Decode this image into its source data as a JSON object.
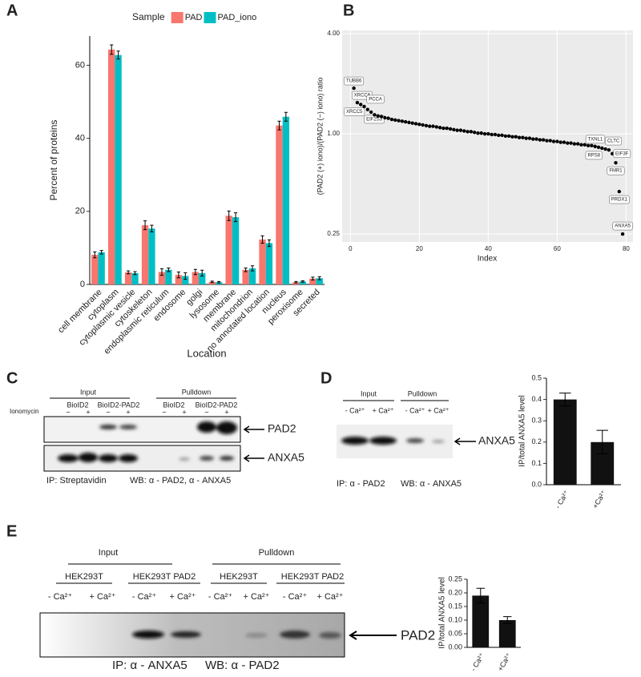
{
  "panel_labels": [
    "A",
    "B",
    "C",
    "D",
    "E"
  ],
  "chart_data": [
    {
      "type": "bar",
      "legend_title": "Sample",
      "xlabel": "Location",
      "ylabel": "Percent of proteins",
      "categories": [
        "cell membrane",
        "cytoplasm",
        "cytoplasmic vesicle",
        "cytoskeleton",
        "endoplasmic reticulum",
        "endosome",
        "golgi",
        "lysosome",
        "membrane",
        "mitochondrion",
        "no annotated location",
        "nucleus",
        "peroxisome",
        "secreted"
      ],
      "series": [
        {
          "name": "PAD",
          "color": "#F8766D",
          "values": [
            8.1,
            64.3,
            3.3,
            16.2,
            3.4,
            2.6,
            3.4,
            0.7,
            18.8,
            4.0,
            12.3,
            43.5,
            0.6,
            1.6
          ],
          "errors": [
            0.8,
            1.3,
            0.4,
            1.2,
            0.9,
            0.8,
            0.7,
            0.2,
            1.3,
            0.5,
            1.0,
            1.2,
            0.2,
            0.4
          ]
        },
        {
          "name": "PAD_iono",
          "color": "#00BFC4",
          "values": [
            8.8,
            62.8,
            3.1,
            15.3,
            4.0,
            2.3,
            3.1,
            0.6,
            18.4,
            4.4,
            11.3,
            45.9,
            0.8,
            1.7
          ],
          "errors": [
            0.5,
            1.1,
            0.4,
            0.9,
            0.5,
            0.9,
            0.8,
            0.2,
            1.2,
            0.7,
            0.9,
            1.2,
            0.2,
            0.4
          ]
        }
      ],
      "ylim": [
        0,
        68
      ],
      "yticks": [
        0,
        20,
        40,
        60
      ],
      "grid": false
    },
    {
      "type": "scatter",
      "xlabel": "Index",
      "ylabel": "(PAD2 (+) iono)/(PAD2 (−) iono) ratio",
      "color": "#000000",
      "background": "#EBEBEB",
      "log_y": true,
      "grid": true,
      "x": [
        1,
        2,
        3,
        4,
        5,
        6,
        7,
        8,
        9,
        10,
        11,
        12,
        13,
        14,
        15,
        16,
        17,
        18,
        19,
        20,
        21,
        22,
        23,
        24,
        25,
        26,
        27,
        28,
        29,
        30,
        31,
        32,
        33,
        34,
        35,
        36,
        37,
        38,
        39,
        40,
        41,
        42,
        43,
        44,
        45,
        46,
        47,
        48,
        49,
        50,
        51,
        52,
        53,
        54,
        55,
        56,
        57,
        58,
        59,
        60,
        61,
        62,
        63,
        64,
        65,
        66,
        67,
        68,
        69,
        70,
        71,
        72,
        73,
        74,
        75,
        76,
        77,
        78,
        79
      ],
      "values": [
        1.88,
        1.54,
        1.5,
        1.46,
        1.4,
        1.35,
        1.3,
        1.28,
        1.27,
        1.25,
        1.24,
        1.22,
        1.21,
        1.2,
        1.19,
        1.18,
        1.17,
        1.16,
        1.15,
        1.14,
        1.13,
        1.12,
        1.11,
        1.11,
        1.1,
        1.09,
        1.08,
        1.08,
        1.07,
        1.06,
        1.05,
        1.05,
        1.04,
        1.03,
        1.03,
        1.02,
        1.01,
        1.01,
        1.0,
        1.0,
        0.99,
        0.99,
        0.98,
        0.98,
        0.97,
        0.97,
        0.96,
        0.96,
        0.95,
        0.95,
        0.94,
        0.94,
        0.93,
        0.93,
        0.92,
        0.92,
        0.91,
        0.91,
        0.9,
        0.9,
        0.89,
        0.89,
        0.88,
        0.88,
        0.87,
        0.87,
        0.86,
        0.86,
        0.85,
        0.85,
        0.84,
        0.83,
        0.82,
        0.81,
        0.8,
        0.76,
        0.67,
        0.45,
        0.25
      ],
      "labels": [
        "TUBB6",
        "XRCC6",
        "XRCC5",
        "PCCA",
        null,
        "EIF2S3",
        null,
        null,
        null,
        null,
        null,
        null,
        null,
        null,
        null,
        null,
        null,
        null,
        null,
        null,
        null,
        null,
        null,
        null,
        null,
        null,
        null,
        null,
        null,
        null,
        null,
        null,
        null,
        null,
        null,
        null,
        null,
        null,
        null,
        null,
        null,
        null,
        null,
        null,
        null,
        null,
        null,
        null,
        null,
        null,
        null,
        null,
        null,
        null,
        null,
        null,
        null,
        null,
        null,
        null,
        null,
        null,
        null,
        null,
        null,
        null,
        null,
        null,
        null,
        null,
        null,
        "TXNL1",
        "RPS8",
        "CLTC",
        null,
        "EIF3F",
        "FMR1",
        "PRDX1",
        "ANXA5"
      ],
      "xlim": [
        -2.4,
        82
      ],
      "xticks": [
        0,
        20,
        40,
        60,
        80
      ],
      "ylim": [
        0.224,
        4.18
      ],
      "yticks": [
        0.25,
        {
          "value": 1,
          "label": "1.00"
        },
        {
          "value": 4,
          "label": "4.00"
        }
      ]
    },
    {
      "type": "bar",
      "ylabel": "IP/total ANXA5 level",
      "categories": [
        "- Ca²⁺",
        "+Ca²⁺"
      ],
      "values": [
        0.4,
        0.2
      ],
      "errors": [
        0.03,
        0.055
      ],
      "color": "#111111",
      "ylim": [
        0,
        0.5
      ],
      "yticks": [
        {
          "value": 0,
          "label": "0.0"
        },
        0.1,
        0.2,
        0.3,
        0.4,
        0.5
      ],
      "grid": false
    },
    {
      "type": "bar",
      "ylabel": "IP/total ANXA5 level",
      "categories": [
        "- Ca²⁺",
        "+Ca²⁺"
      ],
      "values": [
        0.19,
        0.1
      ],
      "errors": [
        0.027,
        0.013
      ],
      "color": "#111111",
      "ylim": [
        0,
        0.25
      ],
      "yticks": [
        {
          "value": 0,
          "label": "0.00"
        },
        {
          "value": 0.05,
          "label": "0.05"
        },
        {
          "value": 0.1,
          "label": "0.10"
        },
        {
          "value": 0.15,
          "label": "0.15"
        },
        {
          "value": 0.2,
          "label": "0.20"
        },
        {
          "value": 0.25,
          "label": "0.25"
        }
      ],
      "grid": false
    }
  ],
  "blot_c": {
    "groups": [
      "Input",
      "Pulldown"
    ],
    "constructs": [
      "BioID2",
      "BioID2-PAD2",
      "BioID2",
      "BioID2-PAD2"
    ],
    "treatment": "Ionomycin",
    "lanes": [
      "−",
      "+",
      "−",
      "+",
      "−",
      "+",
      "−",
      "+"
    ],
    "targets": [
      "PAD2",
      "ANXA5"
    ],
    "ip": "IP: Streptavidin",
    "wb": "WB: α - PAD2, α - ANXA5"
  },
  "blot_d": {
    "groups": [
      "Input",
      "Pulldown"
    ],
    "lanes": [
      "- Ca²⁺",
      "+ Ca²⁺",
      "- Ca²⁺",
      "+ Ca²⁺"
    ],
    "target": "ANXA5",
    "ip": "IP: α - PAD2",
    "wb": "WB: α - ANXA5"
  },
  "blot_e": {
    "groups": [
      "Input",
      "Pulldown"
    ],
    "cells": [
      "HEK293T",
      "HEK293T PAD2",
      "HEK293T",
      "HEK293T PAD2"
    ],
    "lanes": [
      "- Ca²⁺",
      "+ Ca²⁺",
      "- Ca²⁺",
      "+ Ca²⁺",
      "- Ca²⁺",
      "+ Ca²⁺",
      "- Ca²⁺",
      "+ Ca²⁺"
    ],
    "target": "PAD2",
    "ip": "IP: α - ANXA5",
    "wb": "WB: α - PAD2"
  }
}
